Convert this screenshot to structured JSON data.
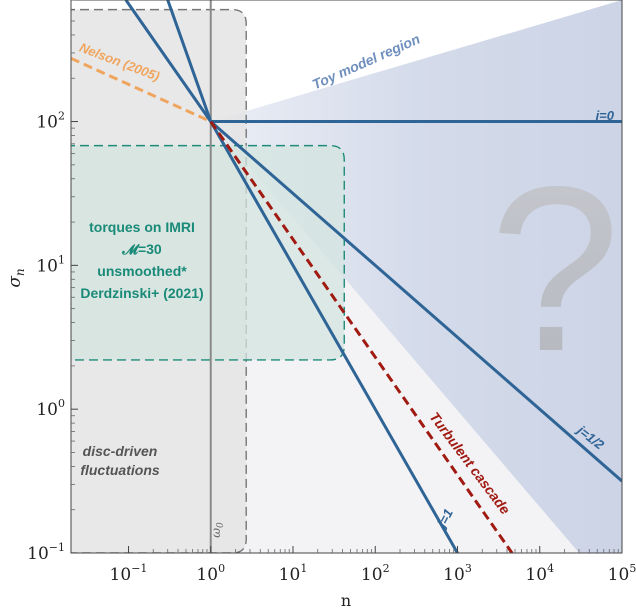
{
  "chart_data": {
    "type": "line",
    "xscale": "log",
    "yscale": "log",
    "xlim": [
      0.02,
      100000
    ],
    "ylim": [
      0.1,
      700
    ],
    "xlabel": "n",
    "ylabel": "σ_n",
    "ylabel_main": "σ",
    "ylabel_sub": "n",
    "x_ticks": [
      {
        "base": "10",
        "exp": "−1",
        "value": 0.1
      },
      {
        "base": "10",
        "exp": "0",
        "value": 1
      },
      {
        "base": "10",
        "exp": "1",
        "value": 10
      },
      {
        "base": "10",
        "exp": "2",
        "value": 100
      },
      {
        "base": "10",
        "exp": "3",
        "value": 1000
      },
      {
        "base": "10",
        "exp": "4",
        "value": 10000
      },
      {
        "base": "10",
        "exp": "5",
        "value": 100000
      }
    ],
    "y_ticks": [
      {
        "base": "10",
        "exp": "−1",
        "value": 0.1
      },
      {
        "base": "10",
        "exp": "0",
        "value": 1
      },
      {
        "base": "10",
        "exp": "1",
        "value": 10
      },
      {
        "base": "10",
        "exp": "2",
        "value": 100
      }
    ],
    "series": [
      {
        "name": "j=0",
        "style": "solid",
        "color": "#2f6496",
        "x": [
          1,
          100000
        ],
        "y": [
          100,
          100
        ]
      },
      {
        "name": "j=1/2",
        "style": "solid",
        "color": "#2f6496",
        "x": [
          1,
          100000
        ],
        "y": [
          100,
          0.316
        ]
      },
      {
        "name": "j=1",
        "style": "solid",
        "color": "#2f6496",
        "x": [
          1,
          1000
        ],
        "y": [
          100,
          0.1
        ]
      },
      {
        "name": "Turbulent cascade",
        "style": "dashed",
        "color": "#a01a12",
        "x": [
          1,
          4600
        ],
        "y": [
          100,
          0.1
        ]
      },
      {
        "name": "Nelson (2005)",
        "style": "dashed",
        "color": "#f0a55e",
        "x": [
          0.02,
          1
        ],
        "y": [
          275,
          100
        ]
      },
      {
        "style": "solid",
        "color": "#2f6496",
        "x": [
          0.093,
          1
        ],
        "y": [
          700,
          100
        ]
      },
      {
        "style": "solid",
        "color": "#2f6496",
        "x": [
          0.3,
          1
        ],
        "y": [
          700,
          100
        ]
      }
    ],
    "vertical_lines": [
      {
        "label": "ω₀",
        "x": 1,
        "style": "solid",
        "color": "#8a8a8a"
      }
    ],
    "regions": [
      {
        "name": "disc-driven fluctuations",
        "x": [
          0.02,
          2.7
        ],
        "y": [
          0.1,
          600
        ],
        "fill": "#e4e4e4",
        "border": "dashed",
        "border_color": "#777777"
      },
      {
        "name": "torques on IMRI",
        "x": [
          0.02,
          42
        ],
        "y": [
          2.2,
          68
        ],
        "fill": "#d3e4df",
        "border": "dashed",
        "border_color": "#1f8b7a"
      },
      {
        "name": "Toy model region",
        "fill": "#c6cfe3"
      }
    ],
    "annotations": {
      "toy_model": "Toy model region",
      "nelson": "Nelson (2005)",
      "j0": "j=0",
      "jhalf": "j=1/2",
      "j1": "j=1",
      "turbulent": "Turbulent cascade",
      "question": "?",
      "omega0": "ω",
      "omega0_sub": "0",
      "disc_line1": "disc-driven",
      "disc_line2": "fluctuations",
      "imri_line1": "torques on IMRI",
      "imri_line2": "𝓜=30",
      "imri_line3": "unsmoothed*",
      "imri_line4": "Derdzinski+ (2021)"
    },
    "colors": {
      "j_lines": "#2f6496",
      "turbulent": "#a01a12",
      "nelson": "#f0a55e",
      "imri": "#1a8a78",
      "toy_region": "#c6cfe3",
      "disc_region": "#e4e4e4",
      "toy_label": "#6f8fbe",
      "question": "#b9bcc4"
    },
    "grid": false,
    "legend": "none"
  }
}
